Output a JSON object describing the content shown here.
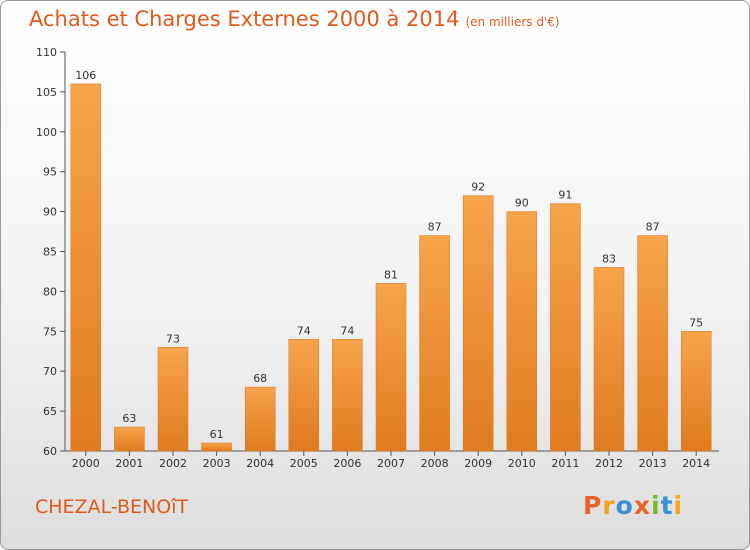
{
  "title": "Achats et Charges Externes 2000 à 2014",
  "subtitle": "(en milliers d'€)",
  "commune": "CHEZAL-BENOîT",
  "logo": {
    "text": "Proxiti",
    "colors": [
      "#e8632a",
      "#f2a41f",
      "#3a8fd6",
      "#e8632a",
      "#7cb72b",
      "#3a8fd6",
      "#f2a41f"
    ]
  },
  "colors": {
    "bar_top": "#f7a44b",
    "bar_bottom": "#e07b1f",
    "accent": "#e05a1e"
  },
  "chart_data": {
    "type": "bar",
    "title": "Achats et Charges Externes 2000 à 2014",
    "subtitle": "(en milliers d'€)",
    "categories": [
      "2000",
      "2001",
      "2002",
      "2003",
      "2004",
      "2005",
      "2006",
      "2007",
      "2008",
      "2009",
      "2010",
      "2011",
      "2012",
      "2013",
      "2014"
    ],
    "values": [
      106,
      63,
      73,
      61,
      68,
      74,
      74,
      81,
      87,
      92,
      90,
      91,
      83,
      87,
      75
    ],
    "ylim": [
      60,
      110
    ],
    "yticks": [
      60,
      65,
      70,
      75,
      80,
      85,
      90,
      95,
      100,
      105,
      110
    ],
    "grid": false,
    "legend": "none"
  }
}
